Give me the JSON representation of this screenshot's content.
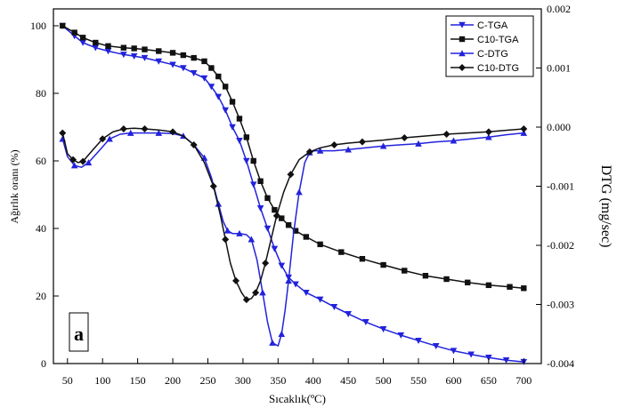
{
  "chart_data": {
    "type": "line",
    "panel_label": "a",
    "xlabel": "Sıcaklık(ºC)",
    "ylabel_left": "Ağırlık oranı (%)",
    "ylabel_right": "DTG (mg/sec)",
    "xlim": [
      30,
      725
    ],
    "ylim_left": [
      0,
      105
    ],
    "ylim_right": [
      -0.004,
      0.002
    ],
    "x_ticks": [
      50,
      100,
      150,
      200,
      250,
      300,
      350,
      400,
      450,
      500,
      550,
      600,
      650,
      700
    ],
    "y_left_ticks": [
      0,
      20,
      40,
      60,
      80,
      100
    ],
    "y_right_ticks": [
      {
        "value": 0.002,
        "label": "0.002"
      },
      {
        "value": 0.001,
        "label": "0.001"
      },
      {
        "value": 0.0,
        "label": "0.000"
      },
      {
        "value": -0.001,
        "label": "-0.001"
      },
      {
        "value": -0.002,
        "label": "-0.002"
      },
      {
        "value": -0.003,
        "label": "-0.003"
      },
      {
        "value": -0.004,
        "label": "-0.004"
      }
    ],
    "grid": false,
    "legend_position": "top-right",
    "series": [
      {
        "name": "C-TGA",
        "axis": "left",
        "color": "#2222dd",
        "marker": "triangle-down",
        "x": [
          43,
          60,
          72,
          90,
          108,
          130,
          145,
          160,
          180,
          200,
          215,
          230,
          245,
          255,
          265,
          275,
          285,
          295,
          305,
          315,
          325,
          335,
          345,
          355,
          365,
          375,
          390,
          410,
          430,
          450,
          475,
          500,
          525,
          550,
          575,
          600,
          625,
          650,
          675,
          700
        ],
        "y": [
          100,
          97,
          95,
          93.5,
          92.5,
          91.5,
          91,
          90.5,
          89.5,
          88.5,
          87.5,
          86,
          84.5,
          82,
          79,
          75,
          70,
          66,
          60,
          53,
          46,
          40,
          34,
          29,
          25.5,
          23.5,
          21,
          19,
          16.8,
          14.7,
          12.3,
          10.2,
          8.4,
          6.8,
          5.2,
          3.8,
          2.7,
          1.8,
          1.0,
          0.5
        ]
      },
      {
        "name": "C10-TGA",
        "axis": "left",
        "color": "#111111",
        "marker": "square",
        "x": [
          43,
          60,
          72,
          90,
          108,
          130,
          145,
          160,
          180,
          200,
          215,
          230,
          245,
          255,
          265,
          275,
          285,
          295,
          305,
          315,
          325,
          335,
          345,
          355,
          365,
          375,
          390,
          410,
          440,
          470,
          500,
          530,
          560,
          590,
          620,
          650,
          680,
          700
        ],
        "y": [
          100,
          98,
          96.5,
          95,
          94,
          93.5,
          93.3,
          93,
          92.5,
          92,
          91.3,
          90.5,
          89.5,
          87.5,
          85,
          82,
          77.5,
          72.5,
          67,
          60,
          54,
          49,
          45.5,
          43,
          41,
          39.3,
          37.5,
          35.3,
          33,
          31,
          29.2,
          27.5,
          26,
          25,
          24,
          23.2,
          22.7,
          22.3
        ]
      },
      {
        "name": "C-DTG",
        "axis": "right",
        "color": "#2222dd",
        "marker": "triangle-up",
        "x": [
          43,
          50,
          60,
          70,
          80,
          95,
          110,
          125,
          140,
          160,
          180,
          200,
          215,
          230,
          245,
          255,
          265,
          272,
          278,
          285,
          295,
          305,
          312,
          320,
          328,
          335,
          342,
          350,
          355,
          360,
          365,
          372,
          380,
          388,
          395,
          402,
          410,
          430,
          450,
          475,
          500,
          525,
          550,
          575,
          600,
          625,
          650,
          675,
          700
        ],
        "y": [
          -0.0002,
          -0.0005,
          -0.00065,
          -0.00068,
          -0.0006,
          -0.0004,
          -0.0002,
          -0.00012,
          -0.0001,
          -0.0001,
          -0.0001,
          -0.00011,
          -0.00015,
          -0.0003,
          -0.00052,
          -0.00085,
          -0.0013,
          -0.0016,
          -0.00175,
          -0.0018,
          -0.0018,
          -0.00182,
          -0.0019,
          -0.00225,
          -0.0028,
          -0.0033,
          -0.00365,
          -0.0037,
          -0.0035,
          -0.0031,
          -0.0026,
          -0.0018,
          -0.0011,
          -0.0006,
          -0.00043,
          -0.0004,
          -0.0004,
          -0.0004,
          -0.00038,
          -0.00035,
          -0.00032,
          -0.0003,
          -0.00028,
          -0.00025,
          -0.00023,
          -0.0002,
          -0.00017,
          -0.00013,
          -0.0001
        ]
      },
      {
        "name": "C10-DTG",
        "axis": "right",
        "color": "#111111",
        "marker": "diamond",
        "x": [
          43,
          50,
          58,
          65,
          72,
          85,
          100,
          115,
          130,
          145,
          160,
          180,
          200,
          215,
          230,
          245,
          258,
          268,
          275,
          282,
          290,
          298,
          305,
          312,
          318,
          325,
          332,
          340,
          348,
          358,
          368,
          380,
          395,
          410,
          430,
          450,
          470,
          500,
          530,
          560,
          590,
          620,
          650,
          680,
          700
        ],
        "y": [
          -0.0001,
          -0.00045,
          -0.00055,
          -0.0006,
          -0.00058,
          -0.0004,
          -0.0002,
          -8e-05,
          -3e-05,
          -2e-05,
          -3e-05,
          -5e-05,
          -8e-05,
          -0.00015,
          -0.0003,
          -0.0006,
          -0.001,
          -0.0015,
          -0.0019,
          -0.0023,
          -0.0026,
          -0.0028,
          -0.00292,
          -0.0029,
          -0.0028,
          -0.0026,
          -0.0023,
          -0.0019,
          -0.0015,
          -0.0011,
          -0.0008,
          -0.00055,
          -0.00042,
          -0.00035,
          -0.0003,
          -0.00027,
          -0.00025,
          -0.00022,
          -0.00018,
          -0.00015,
          -0.00012,
          -0.0001,
          -8e-05,
          -5e-05,
          -3e-05
        ]
      }
    ]
  }
}
